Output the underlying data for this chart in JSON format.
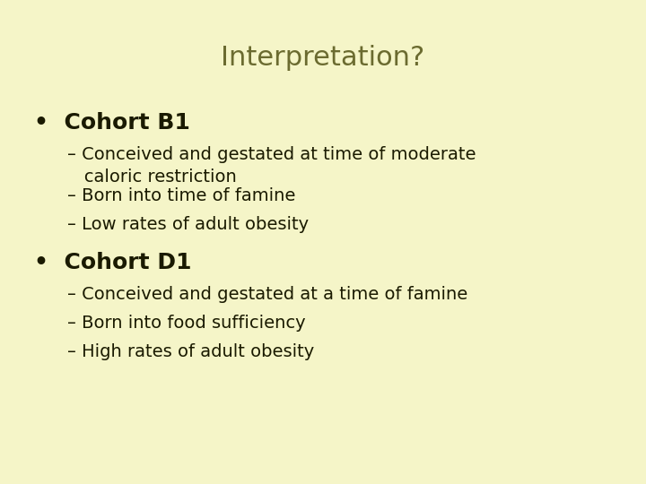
{
  "background_color": "#f5f5c8",
  "title": "Interpretation?",
  "title_color": "#6b6b30",
  "title_fontsize": 22,
  "title_fontstyle": "normal",
  "bullet_color": "#1a1a00",
  "bullet_fontsize": 18,
  "sub_fontsize": 14,
  "bullets": [
    {
      "label": "Cohort B1",
      "subs": [
        "– Conceived and gestated at time of moderate\n   caloric restriction",
        "– Born into time of famine",
        "– Low rates of adult obesity"
      ]
    },
    {
      "label": "Cohort D1",
      "subs": [
        "– Conceived and gestated at a time of famine",
        "– Born into food sufficiency",
        "– High rates of adult obesity"
      ]
    }
  ]
}
